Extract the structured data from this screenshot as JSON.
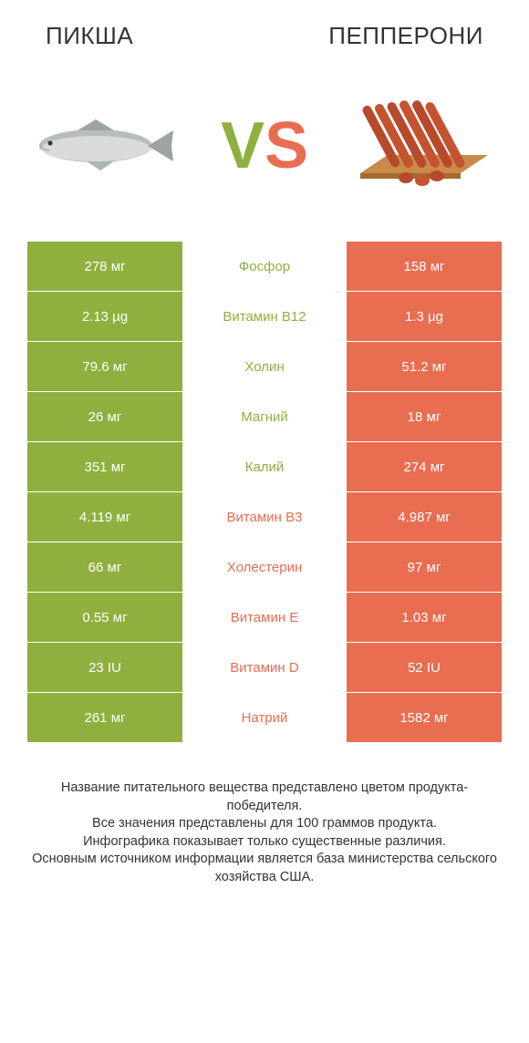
{
  "colors": {
    "left": "#8fb03e",
    "right": "#e96d51",
    "vs_v": "#8fb03e",
    "vs_s": "#e96d51",
    "text": "#333333",
    "bg": "#ffffff"
  },
  "header": {
    "left_title": "ПИКША",
    "right_title": "ПЕППЕРОНИ"
  },
  "vs": {
    "v": "V",
    "s": "S"
  },
  "rows": [
    {
      "left": "278 мг",
      "label": "Фосфор",
      "right": "158 мг",
      "winner": "left"
    },
    {
      "left": "2.13 µg",
      "label": "Витамин B12",
      "right": "1.3 µg",
      "winner": "left"
    },
    {
      "left": "79.6 мг",
      "label": "Холин",
      "right": "51.2 мг",
      "winner": "left"
    },
    {
      "left": "26 мг",
      "label": "Магний",
      "right": "18 мг",
      "winner": "left"
    },
    {
      "left": "351 мг",
      "label": "Калий",
      "right": "274 мг",
      "winner": "left"
    },
    {
      "left": "4.119 мг",
      "label": "Витамин B3",
      "right": "4.987 мг",
      "winner": "right"
    },
    {
      "left": "66 мг",
      "label": "Холестерин",
      "right": "97 мг",
      "winner": "right"
    },
    {
      "left": "0.55 мг",
      "label": "Витамин E",
      "right": "1.03 мг",
      "winner": "right"
    },
    {
      "left": "23 IU",
      "label": "Витамин D",
      "right": "52 IU",
      "winner": "right"
    },
    {
      "left": "261 мг",
      "label": "Натрий",
      "right": "1582 мг",
      "winner": "right"
    }
  ],
  "footer": {
    "line1": "Название питательного вещества представлено цветом продукта-победителя.",
    "line2": "Все значения представлены для 100 граммов продукта.",
    "line3": "Инфографика показывает только существенные различия.",
    "line4": "Основным источником информации является база министерства сельского хозяйства США."
  }
}
